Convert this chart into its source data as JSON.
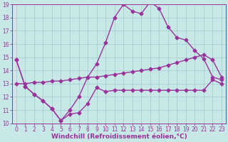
{
  "xlabel": "Windchill (Refroidissement éolien,°C)",
  "ylabel": "",
  "xlim": [
    -0.5,
    23.5
  ],
  "ylim": [
    10,
    19
  ],
  "xticks": [
    0,
    1,
    2,
    3,
    4,
    5,
    6,
    7,
    8,
    9,
    10,
    11,
    12,
    13,
    14,
    15,
    16,
    17,
    18,
    19,
    20,
    21,
    22,
    23
  ],
  "yticks": [
    10,
    11,
    12,
    13,
    14,
    15,
    16,
    17,
    18,
    19
  ],
  "background_color": "#c8e8e8",
  "grid_color": "#a0cccc",
  "line_color": "#993399",
  "line1_x": [
    0,
    1,
    2,
    3,
    4,
    5,
    6,
    7,
    8,
    9,
    10,
    11,
    12,
    13,
    14,
    15,
    16,
    17,
    18,
    19,
    20,
    21,
    22,
    23
  ],
  "line1_y": [
    14.8,
    12.8,
    12.2,
    11.7,
    11.1,
    10.2,
    10.7,
    10.8,
    11.5,
    12.7,
    12.4,
    12.5,
    12.5,
    12.5,
    12.5,
    12.5,
    12.5,
    12.5,
    12.5,
    12.5,
    12.5,
    12.5,
    13.3,
    13.0
  ],
  "line2_x": [
    0,
    1,
    2,
    3,
    4,
    5,
    6,
    7,
    8,
    9,
    10,
    11,
    12,
    13,
    14,
    15,
    16,
    17,
    18,
    19,
    20,
    21,
    22,
    23
  ],
  "line2_y": [
    13.0,
    13.0,
    13.1,
    13.1,
    13.2,
    13.2,
    13.3,
    13.4,
    13.5,
    13.5,
    13.6,
    13.7,
    13.8,
    13.9,
    14.0,
    14.1,
    14.2,
    14.4,
    14.6,
    14.8,
    15.0,
    15.2,
    14.8,
    13.5
  ],
  "line3_x": [
    0,
    1,
    2,
    3,
    4,
    5,
    6,
    7,
    8,
    9,
    10,
    11,
    12,
    13,
    14,
    15,
    16,
    17,
    18,
    19,
    20,
    21,
    22,
    23
  ],
  "line3_y": [
    14.8,
    12.8,
    12.2,
    11.7,
    11.1,
    10.2,
    11.0,
    12.0,
    13.5,
    14.5,
    16.1,
    18.0,
    19.0,
    18.5,
    18.3,
    19.2,
    18.7,
    17.3,
    16.5,
    16.3,
    15.5,
    14.9,
    13.5,
    13.3
  ],
  "marker": "D",
  "marker_size": 2.5,
  "line_width": 1.0,
  "font_color": "#993399",
  "tick_font_size": 5.5,
  "label_font_size": 6.5
}
